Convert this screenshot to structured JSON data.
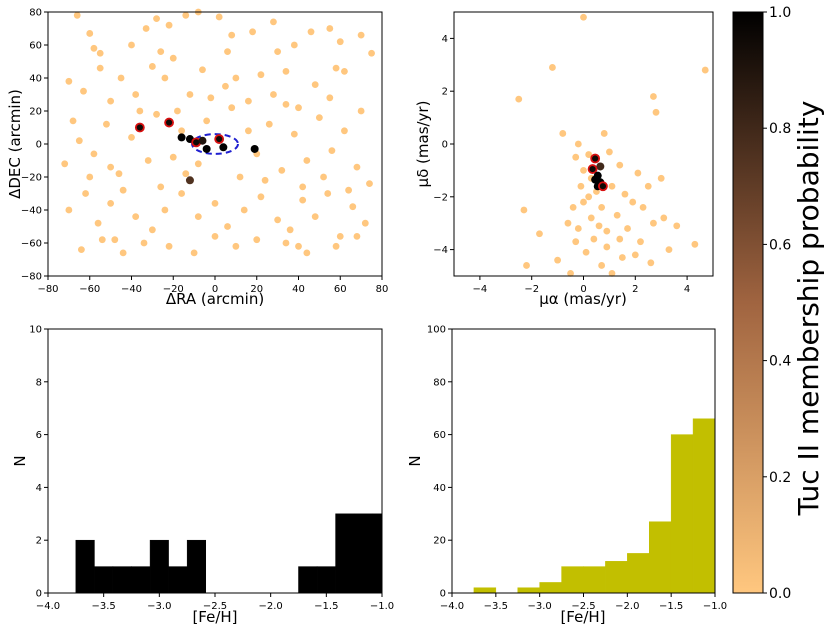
{
  "colorbar": {
    "label": "Tuc II membership probability",
    "ticks": [
      0.0,
      0.2,
      0.4,
      0.6,
      0.8,
      1.0
    ],
    "tick_labels": [
      "0.0",
      "0.2",
      "0.4",
      "0.6",
      "0.8",
      "1.0"
    ],
    "colormap": "copper_r",
    "color_low": "#ffc77f",
    "color_high": "#000000",
    "range": [
      0.0,
      1.0
    ]
  },
  "chart_data": [
    {
      "id": "sky",
      "type": "scatter",
      "title": "",
      "xlabel": "ΔRA (arcmin)",
      "ylabel": "ΔDEC (arcmin)",
      "xlim": [
        -80,
        80
      ],
      "ylim": [
        -80,
        80
      ],
      "xticks": [
        -80,
        -60,
        -40,
        -20,
        0,
        20,
        40,
        60,
        80
      ],
      "xtick_labels": [
        "−80",
        "−60",
        "−40",
        "−20",
        "0",
        "20",
        "40",
        "60",
        "80"
      ],
      "yticks": [
        -80,
        -60,
        -40,
        -20,
        0,
        20,
        40,
        60,
        80
      ],
      "ytick_labels": [
        "−80",
        "−60",
        "−40",
        "−20",
        "0",
        "20",
        "40",
        "60",
        "80"
      ],
      "ellipse": {
        "center": [
          0,
          0
        ],
        "semi_axes": [
          11,
          6
        ],
        "color": "#1f1fd0",
        "style": "dashed"
      },
      "background_points": [
        [
          -66,
          78
        ],
        [
          -60,
          67
        ],
        [
          -55,
          55
        ],
        [
          -40,
          60
        ],
        [
          -33,
          70
        ],
        [
          -28,
          76
        ],
        [
          -22,
          72
        ],
        [
          -14,
          78
        ],
        [
          -8,
          80
        ],
        [
          2,
          77
        ],
        [
          8,
          66
        ],
        [
          18,
          68
        ],
        [
          28,
          74
        ],
        [
          38,
          60
        ],
        [
          46,
          68
        ],
        [
          55,
          70
        ],
        [
          60,
          62
        ],
        [
          70,
          66
        ],
        [
          75,
          55
        ],
        [
          -70,
          38
        ],
        [
          -63,
          32
        ],
        [
          -55,
          46
        ],
        [
          -50,
          26
        ],
        [
          -45,
          40
        ],
        [
          -38,
          30
        ],
        [
          -30,
          47
        ],
        [
          -24,
          40
        ],
        [
          -18,
          20
        ],
        [
          -12,
          30
        ],
        [
          -6,
          45
        ],
        [
          -2,
          28
        ],
        [
          5,
          35
        ],
        [
          10,
          40
        ],
        [
          16,
          26
        ],
        [
          22,
          42
        ],
        [
          28,
          30
        ],
        [
          34,
          44
        ],
        [
          40,
          22
        ],
        [
          48,
          36
        ],
        [
          55,
          28
        ],
        [
          62,
          44
        ],
        [
          70,
          20
        ],
        [
          -72,
          -12
        ],
        [
          -65,
          2
        ],
        [
          -58,
          -6
        ],
        [
          -52,
          12
        ],
        [
          -46,
          -18
        ],
        [
          -40,
          4
        ],
        [
          -32,
          -10
        ],
        [
          -28,
          18
        ],
        [
          -20,
          -8
        ],
        [
          -14,
          -18
        ],
        [
          -8,
          -12
        ],
        [
          12,
          -20
        ],
        [
          20,
          -6
        ],
        [
          26,
          12
        ],
        [
          32,
          -16
        ],
        [
          38,
          6
        ],
        [
          44,
          -10
        ],
        [
          50,
          16
        ],
        [
          56,
          -4
        ],
        [
          62,
          8
        ],
        [
          68,
          -14
        ],
        [
          74,
          -24
        ],
        [
          -70,
          -40
        ],
        [
          -62,
          -30
        ],
        [
          -56,
          -48
        ],
        [
          -50,
          -36
        ],
        [
          -44,
          -28
        ],
        [
          -38,
          -44
        ],
        [
          -30,
          -52
        ],
        [
          -24,
          -40
        ],
        [
          -16,
          -30
        ],
        [
          -8,
          -44
        ],
        [
          0,
          -36
        ],
        [
          6,
          -50
        ],
        [
          14,
          -40
        ],
        [
          22,
          -32
        ],
        [
          30,
          -46
        ],
        [
          36,
          -52
        ],
        [
          42,
          -34
        ],
        [
          48,
          -44
        ],
        [
          54,
          -30
        ],
        [
          60,
          -56
        ],
        [
          66,
          -38
        ],
        [
          72,
          -48
        ],
        [
          -64,
          -64
        ],
        [
          -54,
          -58
        ],
        [
          -44,
          -66
        ],
        [
          -34,
          -60
        ],
        [
          -22,
          -62
        ],
        [
          -10,
          -66
        ],
        [
          0,
          -56
        ],
        [
          10,
          -62
        ],
        [
          20,
          -58
        ],
        [
          34,
          -60
        ],
        [
          44,
          -66
        ],
        [
          58,
          -62
        ],
        [
          68,
          -56
        ],
        [
          -68,
          14
        ],
        [
          -60,
          -20
        ],
        [
          -48,
          -58
        ],
        [
          -36,
          20
        ],
        [
          -26,
          -26
        ],
        [
          -16,
          8
        ],
        [
          -4,
          14
        ],
        [
          8,
          22
        ],
        [
          16,
          8
        ],
        [
          24,
          -22
        ],
        [
          34,
          24
        ],
        [
          42,
          -26
        ],
        [
          52,
          -20
        ],
        [
          64,
          -28
        ],
        [
          -58,
          58
        ],
        [
          -26,
          56
        ],
        [
          6,
          56
        ],
        [
          30,
          56
        ],
        [
          58,
          46
        ],
        [
          -50,
          -14
        ],
        [
          40,
          -62
        ],
        [
          -20,
          52
        ]
      ],
      "members": [
        {
          "x": -36,
          "y": 10,
          "prob": 0.95,
          "highlight": true
        },
        {
          "x": -22,
          "y": 13,
          "prob": 0.95,
          "highlight": true
        },
        {
          "x": -16,
          "y": 4,
          "prob": 1.0,
          "highlight": false
        },
        {
          "x": -12,
          "y": 3,
          "prob": 1.0,
          "highlight": false
        },
        {
          "x": -9,
          "y": 1,
          "prob": 0.95,
          "highlight": true
        },
        {
          "x": -6,
          "y": 2,
          "prob": 0.9,
          "highlight": false
        },
        {
          "x": -4,
          "y": -3,
          "prob": 1.0,
          "highlight": false
        },
        {
          "x": 2,
          "y": 3,
          "prob": 0.95,
          "highlight": true
        },
        {
          "x": 4,
          "y": -2,
          "prob": 1.0,
          "highlight": false
        },
        {
          "x": 19,
          "y": -3,
          "prob": 1.0,
          "highlight": false
        },
        {
          "x": -12,
          "y": -22,
          "prob": 0.75,
          "highlight": false
        }
      ]
    },
    {
      "id": "pm",
      "type": "scatter",
      "title": "",
      "xlabel": "μα (mas/yr)",
      "ylabel": "μδ (mas/yr)",
      "xlim": [
        -5,
        5
      ],
      "ylim": [
        -5,
        5
      ],
      "xticks": [
        -4,
        -2,
        0,
        2,
        4
      ],
      "xtick_labels": [
        "−4",
        "−2",
        "0",
        "2",
        "4"
      ],
      "yticks": [
        -4,
        -2,
        0,
        2,
        4
      ],
      "ytick_labels": [
        "−4",
        "−2",
        "0",
        "2",
        "4"
      ],
      "background_points": [
        [
          0.0,
          4.8
        ],
        [
          -1.2,
          2.9
        ],
        [
          -2.5,
          1.7
        ],
        [
          4.7,
          2.8
        ],
        [
          2.7,
          1.8
        ],
        [
          2.8,
          1.2
        ],
        [
          -0.8,
          0.4
        ],
        [
          -0.2,
          0.0
        ],
        [
          0.8,
          0.4
        ],
        [
          1.0,
          -0.3
        ],
        [
          -0.3,
          -0.5
        ],
        [
          0.0,
          -1.0
        ],
        [
          0.2,
          -0.4
        ],
        [
          1.4,
          -0.8
        ],
        [
          2.1,
          -1.1
        ],
        [
          3.0,
          -1.3
        ],
        [
          0.5,
          -1.8
        ],
        [
          1.1,
          -1.6
        ],
        [
          1.6,
          -1.9
        ],
        [
          2.5,
          -1.6
        ],
        [
          -2.3,
          -2.5
        ],
        [
          -1.7,
          -3.4
        ],
        [
          -0.6,
          -3.0
        ],
        [
          0.0,
          -2.2
        ],
        [
          0.3,
          -2.8
        ],
        [
          0.7,
          -2.4
        ],
        [
          1.3,
          -2.7
        ],
        [
          1.7,
          -3.2
        ],
        [
          2.3,
          -2.4
        ],
        [
          2.7,
          -3.0
        ],
        [
          3.1,
          -2.8
        ],
        [
          3.6,
          -3.1
        ],
        [
          -2.2,
          -4.6
        ],
        [
          -1.0,
          -4.4
        ],
        [
          -0.3,
          -3.7
        ],
        [
          0.4,
          -3.6
        ],
        [
          0.9,
          -3.9
        ],
        [
          1.5,
          -4.3
        ],
        [
          2.0,
          -4.2
        ],
        [
          2.6,
          -4.5
        ],
        [
          3.3,
          -4.0
        ],
        [
          4.3,
          -3.8
        ],
        [
          1.1,
          -4.9
        ],
        [
          -0.5,
          -4.9
        ],
        [
          -0.1,
          -1.6
        ],
        [
          0.2,
          -2.0
        ],
        [
          0.6,
          -3.1
        ],
        [
          1.9,
          -2.2
        ],
        [
          0.9,
          -3.3
        ],
        [
          -0.4,
          -2.4
        ],
        [
          0.1,
          -4.1
        ],
        [
          1.4,
          -3.6
        ],
        [
          2.2,
          -3.7
        ],
        [
          0.3,
          -1.3
        ],
        [
          -0.2,
          -3.2
        ],
        [
          0.7,
          -4.6
        ]
      ],
      "members": [
        {
          "x": 0.45,
          "y": -0.55,
          "prob": 0.95,
          "highlight": true
        },
        {
          "x": 0.65,
          "y": -0.85,
          "prob": 0.8,
          "highlight": false
        },
        {
          "x": 0.35,
          "y": -0.95,
          "prob": 0.95,
          "highlight": true
        },
        {
          "x": 0.55,
          "y": -1.2,
          "prob": 1.0,
          "highlight": false
        },
        {
          "x": 0.45,
          "y": -1.35,
          "prob": 1.0,
          "highlight": false
        },
        {
          "x": 0.65,
          "y": -1.45,
          "prob": 1.0,
          "highlight": false
        },
        {
          "x": 0.55,
          "y": -1.6,
          "prob": 1.0,
          "highlight": false
        },
        {
          "x": 0.75,
          "y": -1.6,
          "prob": 0.95,
          "highlight": true
        }
      ]
    },
    {
      "id": "hist_tuc",
      "type": "bar",
      "subtype": "histogram",
      "title": "",
      "xlabel": "[Fe/H]",
      "ylabel": "N",
      "xlim": [
        -4.0,
        -1.0
      ],
      "ylim": [
        0,
        10
      ],
      "bar_color": "#000000",
      "bin_edges": [
        -3.75,
        -3.583,
        -3.417,
        -3.25,
        -3.083,
        -2.917,
        -2.75,
        -2.583,
        -2.417,
        -2.25,
        -2.083,
        -1.917,
        -1.75,
        -1.583,
        -1.417,
        -1.25,
        -1.083,
        -1.0
      ],
      "counts": [
        2,
        1,
        1,
        1,
        2,
        1,
        2,
        0,
        0,
        0,
        0,
        0,
        1,
        1,
        3,
        3,
        3
      ],
      "xticks": [
        -4.0,
        -3.5,
        -3.0,
        -2.5,
        -2.0,
        -1.5,
        -1.0
      ],
      "xtick_labels": [
        "−4.0",
        "−3.5",
        "−3.0",
        "−2.5",
        "−2.0",
        "−1.5",
        "−1.0"
      ],
      "yticks": [
        0,
        2,
        4,
        6,
        8,
        10
      ],
      "ytick_labels": [
        "0",
        "2",
        "4",
        "6",
        "8",
        "10"
      ]
    },
    {
      "id": "hist_field",
      "type": "bar",
      "subtype": "histogram",
      "title": "",
      "xlabel": "[Fe/H]",
      "ylabel": "N",
      "xlim": [
        -4.0,
        -1.0
      ],
      "ylim": [
        0,
        100
      ],
      "bar_color": "#c2bf00",
      "bin_edges": [
        -3.75,
        -3.5,
        -3.25,
        -3.0,
        -2.75,
        -2.5,
        -2.25,
        -2.0,
        -1.75,
        -1.5,
        -1.25,
        -1.0
      ],
      "counts": [
        2,
        0,
        2,
        4,
        10,
        10,
        12,
        15,
        27,
        60,
        66
      ],
      "xticks": [
        -4.0,
        -3.5,
        -3.0,
        -2.5,
        -2.0,
        -1.5,
        -1.0
      ],
      "xtick_labels": [
        "−4.0",
        "−3.5",
        "−3.0",
        "−2.5",
        "−2.0",
        "−1.5",
        "−1.0"
      ],
      "yticks": [
        0,
        20,
        40,
        60,
        80,
        100
      ],
      "ytick_labels": [
        "0",
        "20",
        "40",
        "60",
        "80",
        "100"
      ]
    }
  ]
}
